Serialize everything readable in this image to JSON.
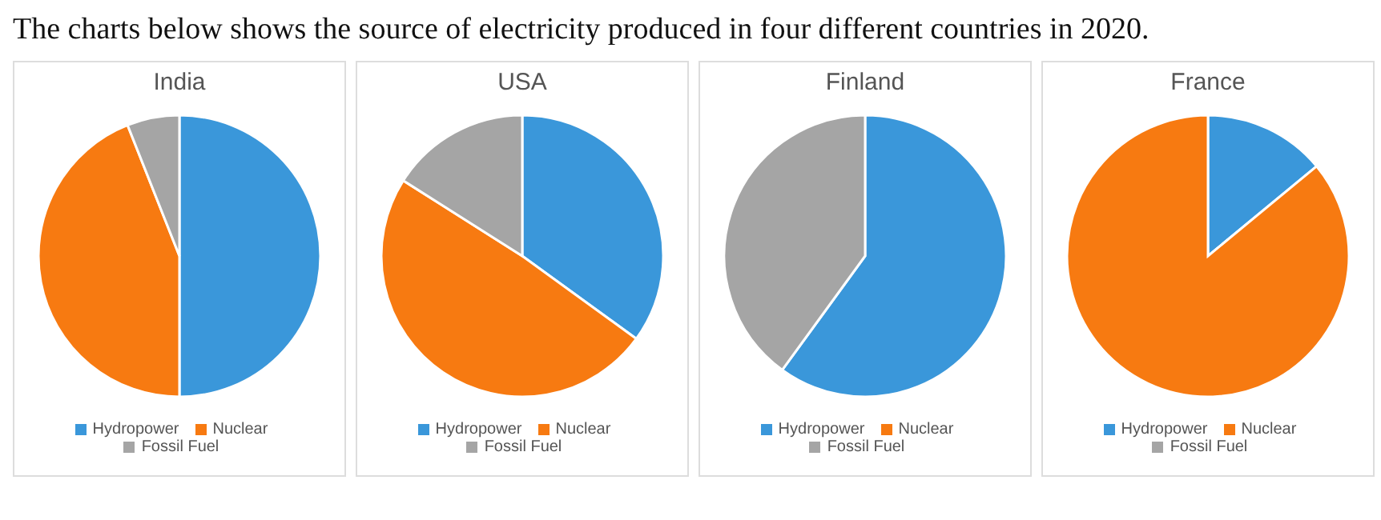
{
  "chart_data": [
    {
      "type": "pie",
      "title": "India",
      "annotations": [
        "The charts below shows the source of electricity produced in four different countries in 2020."
      ],
      "categories": [
        "Hydropower",
        "Nuclear",
        "Fossil Fuel"
      ],
      "values": [
        50,
        44,
        6
      ],
      "colors": [
        "#3a97da",
        "#f77a11",
        "#a5a5a5"
      ],
      "legend": "bottom"
    },
    {
      "type": "pie",
      "title": "USA",
      "categories": [
        "Hydropower",
        "Nuclear",
        "Fossil Fuel"
      ],
      "values": [
        35,
        49,
        16
      ],
      "colors": [
        "#3a97da",
        "#f77a11",
        "#a5a5a5"
      ],
      "legend": "bottom"
    },
    {
      "type": "pie",
      "title": "Finland",
      "categories": [
        "Hydropower",
        "Nuclear",
        "Fossil Fuel"
      ],
      "values": [
        60,
        0,
        40
      ],
      "colors": [
        "#3a97da",
        "#f77a11",
        "#a5a5a5"
      ],
      "legend": "bottom"
    },
    {
      "type": "pie",
      "title": "France",
      "categories": [
        "Hydropower",
        "Nuclear",
        "Fossil Fuel"
      ],
      "values": [
        14,
        86,
        0
      ],
      "colors": [
        "#3a97da",
        "#f77a11",
        "#a5a5a5"
      ],
      "legend": "bottom"
    }
  ]
}
